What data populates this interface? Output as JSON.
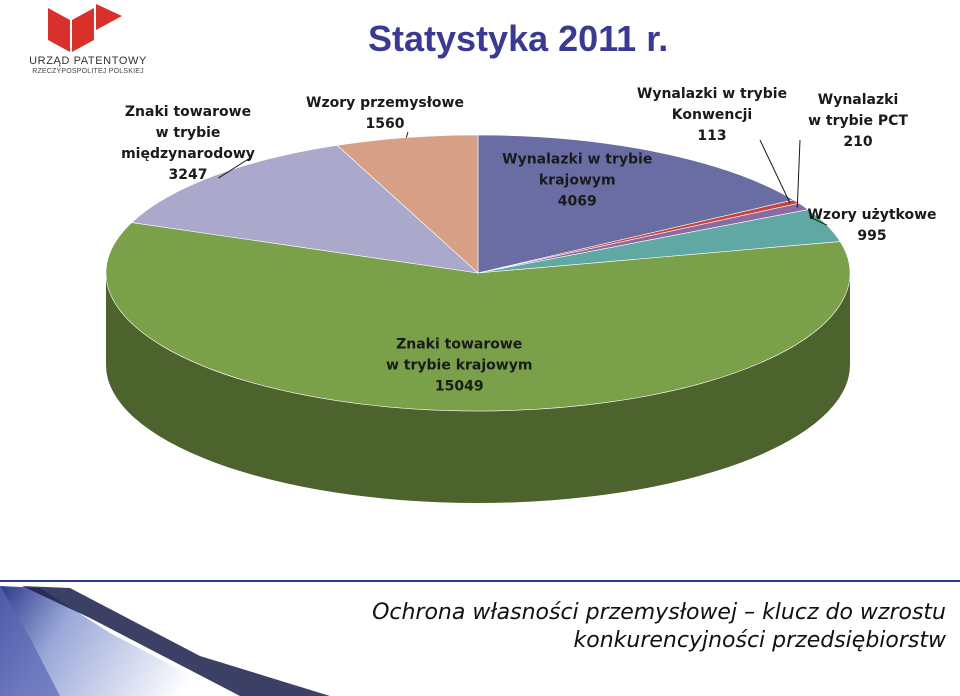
{
  "header": {
    "title": "Statystyka 2011 r.",
    "logo_line1": "URZĄD PATENTOWY",
    "logo_line2": "RZECZYPOSPOLITEJ POLSKIEJ"
  },
  "chart_data": {
    "type": "pie",
    "style": "3d",
    "title": "",
    "slices": [
      {
        "label_lines": [
          "Wynalazki w trybie",
          "krajowym"
        ],
        "value": 4069,
        "value_label": "4069",
        "color": "#6a6da4"
      },
      {
        "label_lines": [
          "Wynalazki w trybie",
          "Konwencji"
        ],
        "value": 113,
        "value_label": "113",
        "color": "#c8423b"
      },
      {
        "label_lines": [
          "Wynalazki",
          "w trybie PCT"
        ],
        "value": 210,
        "value_label": "210",
        "color": "#8b6aa3"
      },
      {
        "label_lines": [
          "Wzory użytkowe"
        ],
        "value": 995,
        "value_label": "995",
        "color": "#5fa8a3"
      },
      {
        "label_lines": [
          "Znaki towarowe",
          "w trybie krajowym"
        ],
        "value": 15049,
        "value_label": "15049",
        "color": "#7aa04a"
      },
      {
        "label_lines": [
          "Znaki towarowe",
          "w trybie",
          "międzynarodowy"
        ],
        "value": 3247,
        "value_label": "3247",
        "color": "#aaa8cb"
      },
      {
        "label_lines": [
          "Wzory przemysłowe"
        ],
        "value": 1560,
        "value_label": "1560",
        "color": "#d69f86"
      }
    ]
  },
  "footer": {
    "line1": "Ochrona własności przemysłowej – klucz do wzrostu",
    "line2": "konkurencyjności przedsiębiorstw"
  },
  "colors": {
    "title": "#3a3a93",
    "footer_band_dark": "#2d3a8c",
    "footer_band_light": "#9aa8d8",
    "logo_red": "#d8312c"
  }
}
